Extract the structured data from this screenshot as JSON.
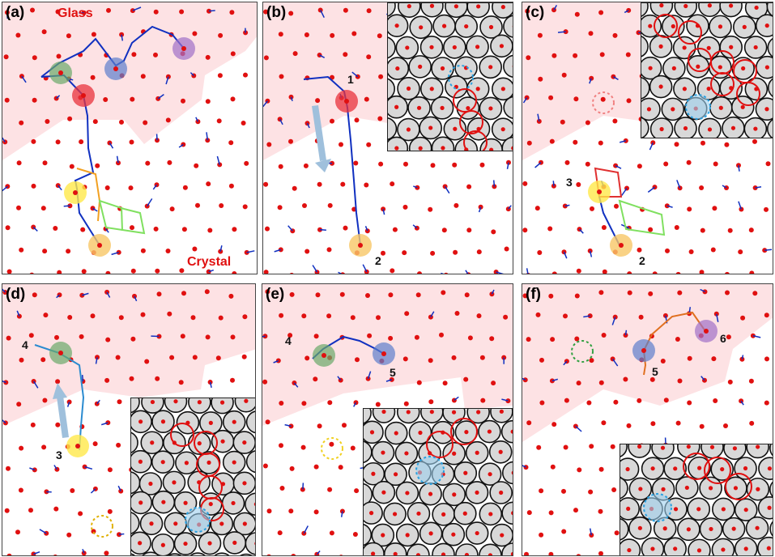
{
  "panels": [
    {
      "id": "a",
      "label": "(a)",
      "tags": {
        "glass": "Glass",
        "crystal": "Crystal"
      },
      "numbers": []
    },
    {
      "id": "b",
      "label": "(b)",
      "numbers": [
        "1",
        "2"
      ]
    },
    {
      "id": "c",
      "label": "(c)",
      "numbers": [
        "3",
        "2"
      ]
    },
    {
      "id": "d",
      "label": "(d)",
      "numbers": [
        "4",
        "3"
      ]
    },
    {
      "id": "e",
      "label": "(e)",
      "numbers": [
        "4",
        "5"
      ]
    },
    {
      "id": "f",
      "label": "(f)",
      "numbers": [
        "5",
        "6"
      ]
    }
  ],
  "colors": {
    "glass_region": "#fde2e4",
    "particle": "#e01010",
    "trajectory": "#1030c0",
    "highlight_red": "#e8323c",
    "highlight_green": "#6aaa6a",
    "highlight_blue": "#5c7fcc",
    "highlight_purple": "#a070c8",
    "highlight_yellow": "#ffe84a",
    "highlight_orange": "#f7c766",
    "arrow": "#9fc0dc",
    "inset_disk": "#d8d8d8",
    "inset_ring_red": "#e01010",
    "inset_ring_blue": "#2aa0e0"
  }
}
